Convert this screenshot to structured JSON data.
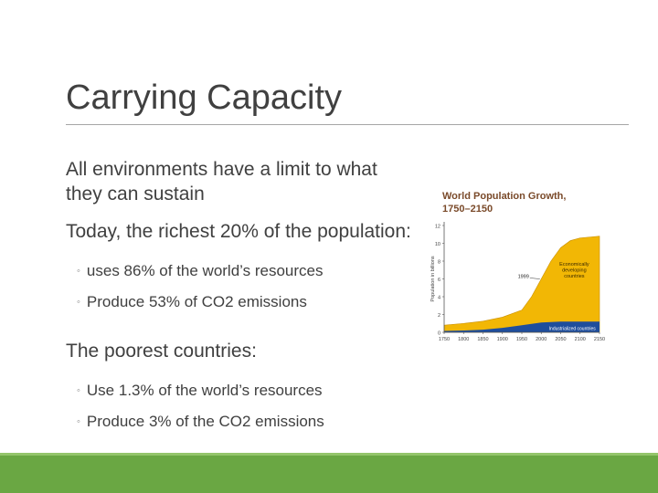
{
  "slide": {
    "title": "Carrying Capacity",
    "colors": {
      "accent_green": "#6aa743",
      "rule": "#a6a6a6",
      "text": "#404040"
    },
    "bullets": [
      {
        "text": "All environments have a limit to what they can sustain",
        "subs": []
      },
      {
        "text": "Today, the richest 20% of the population:",
        "subs": [
          "uses 86% of the world’s resources",
          "Produce 53% of CO2 emissions"
        ]
      },
      {
        "text": "The poorest countries:",
        "subs": [
          "Use 1.3% of the world’s resources",
          "Produce 3% of the CO2 emissions"
        ]
      }
    ],
    "sub_marker": "◦"
  },
  "chart_data": {
    "type": "area",
    "title": "World Population Growth,",
    "subtitle": "1750–2150",
    "ylabel": "Population in billions",
    "xlabel": "",
    "x_ticks": [
      "1750",
      "1800",
      "1850",
      "1900",
      "1950",
      "2000",
      "2050",
      "2100",
      "2150"
    ],
    "y_ticks": [
      "0",
      "2",
      "4",
      "6",
      "8",
      "10",
      "12"
    ],
    "ylim": [
      0,
      12
    ],
    "xlim": [
      1750,
      2150
    ],
    "annotation": "1999",
    "series": [
      {
        "name": "Industrialized countries",
        "color": "#1f4e9c",
        "x": [
          1750,
          1800,
          1850,
          1900,
          1950,
          2000,
          2050,
          2100,
          2150
        ],
        "y": [
          0.15,
          0.2,
          0.3,
          0.5,
          0.8,
          1.1,
          1.2,
          1.2,
          1.2
        ]
      },
      {
        "name": "Economically developing countries",
        "color": "#f2b705",
        "x": [
          1750,
          1800,
          1850,
          1900,
          1950,
          1975,
          2000,
          2025,
          2050,
          2075,
          2100,
          2150
        ],
        "y": [
          0.8,
          1.0,
          1.25,
          1.7,
          2.5,
          4.0,
          6.0,
          8.0,
          9.5,
          10.3,
          10.6,
          10.8
        ]
      }
    ],
    "legend_labels": [
      "Economically developing countries",
      "Industrialized countries"
    ]
  }
}
